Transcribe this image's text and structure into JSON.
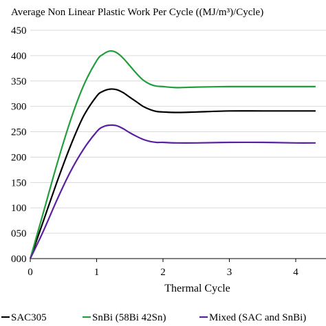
{
  "chart_data": {
    "type": "line",
    "title": "Average Non Linear Plastic Work Per Cycle ((MJ/m³)/Cycle)",
    "xlabel": "Thermal Cycle",
    "ylabel": "",
    "xlim": [
      0,
      4
    ],
    "ylim": [
      0,
      450
    ],
    "xticks": [
      "0",
      "1",
      "2",
      "3",
      "4"
    ],
    "yticks": [
      "000",
      "050",
      "100",
      "150",
      "200",
      "250",
      "300",
      "350",
      "400",
      "450"
    ],
    "grid": "horizontal",
    "legend_position": "bottom",
    "series": [
      {
        "name": "SAC305",
        "color": "#000000",
        "x": [
          0,
          0.2,
          0.4,
          0.6,
          0.8,
          1.0,
          1.1,
          1.2,
          1.3,
          1.4,
          1.5,
          1.6,
          1.7,
          1.8,
          1.9,
          2.0,
          2.2,
          2.5,
          3.0,
          3.5,
          4.0,
          4.3
        ],
        "y": [
          0,
          75,
          150,
          220,
          280,
          320,
          330,
          334,
          333,
          327,
          318,
          309,
          300,
          294,
          290,
          289,
          288,
          289,
          291,
          291,
          291,
          291
        ]
      },
      {
        "name": "SnBi (58Bi 42Sn)",
        "color": "#1f9e3a",
        "x": [
          0,
          0.2,
          0.4,
          0.6,
          0.8,
          1.0,
          1.1,
          1.2,
          1.3,
          1.4,
          1.5,
          1.6,
          1.7,
          1.8,
          1.9,
          2.0,
          2.2,
          2.5,
          3.0,
          3.5,
          4.0,
          4.3
        ],
        "y": [
          0,
          92,
          185,
          270,
          340,
          390,
          403,
          409,
          406,
          395,
          380,
          365,
          352,
          344,
          340,
          339,
          337,
          338,
          339,
          339,
          339,
          339
        ]
      },
      {
        "name": "Mixed (SAC and SnBi)",
        "color": "#5b1fa0",
        "x": [
          0,
          0.2,
          0.4,
          0.6,
          0.8,
          1.0,
          1.1,
          1.2,
          1.3,
          1.4,
          1.5,
          1.6,
          1.7,
          1.8,
          1.9,
          2.0,
          2.2,
          2.5,
          3.0,
          3.5,
          4.0,
          4.3
        ],
        "y": [
          0,
          55,
          115,
          170,
          215,
          250,
          260,
          263,
          262,
          256,
          248,
          241,
          235,
          231,
          229,
          229,
          228,
          228,
          229,
          229,
          228,
          228
        ]
      }
    ]
  }
}
